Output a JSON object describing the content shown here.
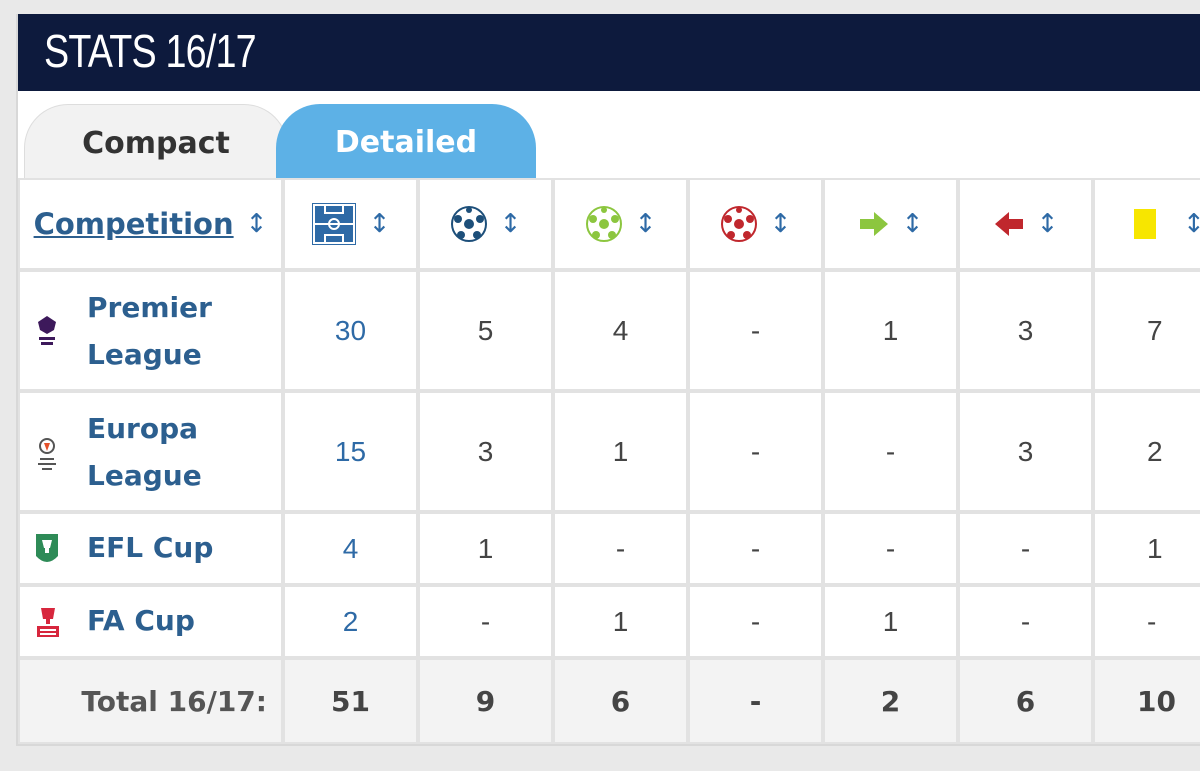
{
  "header": {
    "title": "STATS 16/17"
  },
  "tabs": {
    "compact": "Compact",
    "detailed": "Detailed"
  },
  "table": {
    "competition_header": "Competition",
    "sort_glyph": "↕",
    "columns": [
      {
        "icon": "pitch-icon"
      },
      {
        "icon": "ball-blue-icon"
      },
      {
        "icon": "ball-green-icon"
      },
      {
        "icon": "ball-red-icon"
      },
      {
        "icon": "arrow-right-green-icon"
      },
      {
        "icon": "arrow-left-red-icon"
      },
      {
        "icon": "yellow-card-icon"
      }
    ],
    "rows": [
      {
        "name": "Premier League",
        "logo": "premier-league-logo",
        "v0": "30",
        "v1": "5",
        "v2": "4",
        "v3": "-",
        "v4": "1",
        "v5": "3",
        "v6": "7"
      },
      {
        "name": "Europa League",
        "logo": "europa-league-logo",
        "v0": "15",
        "v1": "3",
        "v2": "1",
        "v3": "-",
        "v4": "-",
        "v5": "3",
        "v6": "2"
      },
      {
        "name": "EFL Cup",
        "logo": "efl-cup-logo",
        "v0": "4",
        "v1": "1",
        "v2": "-",
        "v3": "-",
        "v4": "-",
        "v5": "-",
        "v6": "1"
      },
      {
        "name": "FA Cup",
        "logo": "fa-cup-logo",
        "v0": "2",
        "v1": "-",
        "v2": "1",
        "v3": "-",
        "v4": "1",
        "v5": "-",
        "v6": "-"
      }
    ],
    "total": {
      "label": "Total 16/17:",
      "v0": "51",
      "v1": "9",
      "v2": "6",
      "v3": "-",
      "v4": "2",
      "v5": "6",
      "v6": "10"
    }
  },
  "colors": {
    "header_bg": "#0d1a3d",
    "active_tab": "#5db1e6",
    "link": "#2c5f8f",
    "ball_blue": "#1d4f7a",
    "ball_green": "#8cc63f",
    "ball_red": "#c0272d",
    "yellow_card": "#f7e600"
  }
}
